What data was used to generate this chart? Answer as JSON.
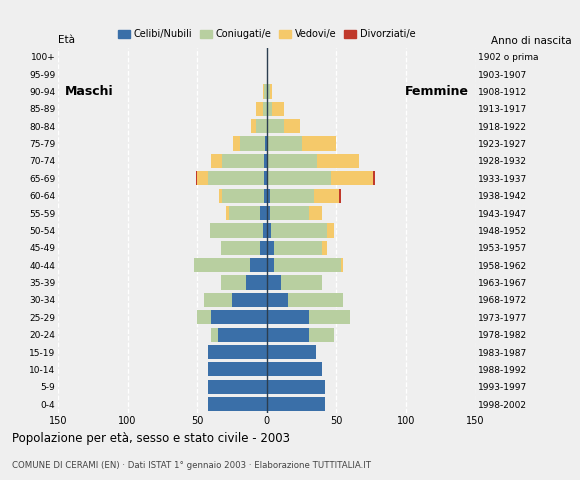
{
  "title": "Popolazione per età, sesso e stato civile - 2003",
  "subtitle": "COMUNE DI CERAMI (EN) · Dati ISTAT 1° gennaio 2003 · Elaborazione TUTTITALIA.IT",
  "age_groups": [
    "0-4",
    "5-9",
    "10-14",
    "15-19",
    "20-24",
    "25-29",
    "30-34",
    "35-39",
    "40-44",
    "45-49",
    "50-54",
    "55-59",
    "60-64",
    "65-69",
    "70-74",
    "75-79",
    "80-84",
    "85-89",
    "90-94",
    "95-99",
    "100+"
  ],
  "birth_years": [
    "1998-2002",
    "1993-1997",
    "1988-1992",
    "1983-1987",
    "1978-1982",
    "1973-1977",
    "1968-1972",
    "1963-1967",
    "1958-1962",
    "1953-1957",
    "1948-1952",
    "1943-1947",
    "1938-1942",
    "1933-1937",
    "1928-1932",
    "1923-1927",
    "1918-1922",
    "1913-1917",
    "1908-1912",
    "1903-1907",
    "1902 o prima"
  ],
  "colors": {
    "celibe": "#3a6fa8",
    "coniugato": "#b8cfa0",
    "vedovo": "#f5c96a",
    "divorziato": "#c0392b"
  },
  "males": {
    "celibe": [
      42,
      42,
      42,
      42,
      35,
      40,
      25,
      15,
      12,
      5,
      3,
      5,
      2,
      2,
      2,
      1,
      0,
      0,
      0,
      0,
      0
    ],
    "coniugato": [
      0,
      0,
      0,
      0,
      5,
      10,
      20,
      18,
      40,
      28,
      38,
      22,
      30,
      40,
      30,
      18,
      8,
      3,
      2,
      0,
      0
    ],
    "vedovo": [
      0,
      0,
      0,
      0,
      0,
      0,
      0,
      0,
      0,
      0,
      0,
      2,
      2,
      8,
      8,
      5,
      3,
      5,
      1,
      0,
      0
    ],
    "divorziato": [
      0,
      0,
      0,
      0,
      0,
      0,
      0,
      0,
      0,
      0,
      0,
      0,
      0,
      1,
      0,
      0,
      0,
      0,
      0,
      0,
      0
    ]
  },
  "females": {
    "celibe": [
      42,
      42,
      40,
      35,
      30,
      30,
      15,
      10,
      5,
      5,
      3,
      2,
      2,
      1,
      1,
      0,
      0,
      0,
      0,
      0,
      0
    ],
    "coniugato": [
      0,
      0,
      0,
      0,
      18,
      30,
      40,
      30,
      48,
      35,
      40,
      28,
      32,
      45,
      35,
      25,
      12,
      4,
      2,
      0,
      0
    ],
    "vedovo": [
      0,
      0,
      0,
      0,
      0,
      0,
      0,
      0,
      2,
      3,
      5,
      10,
      18,
      30,
      30,
      25,
      12,
      8,
      2,
      0,
      0
    ],
    "divorziato": [
      0,
      0,
      0,
      0,
      0,
      0,
      0,
      0,
      0,
      0,
      0,
      0,
      1,
      2,
      0,
      0,
      0,
      0,
      0,
      0,
      0
    ]
  },
  "xlim": 150,
  "xticks": [
    -150,
    -100,
    -50,
    0,
    50,
    100,
    150
  ],
  "xticklabels": [
    "150",
    "100",
    "50",
    "0",
    "50",
    "100",
    "150"
  ],
  "bg_color": "#efefef",
  "grid_color": "#ffffff"
}
